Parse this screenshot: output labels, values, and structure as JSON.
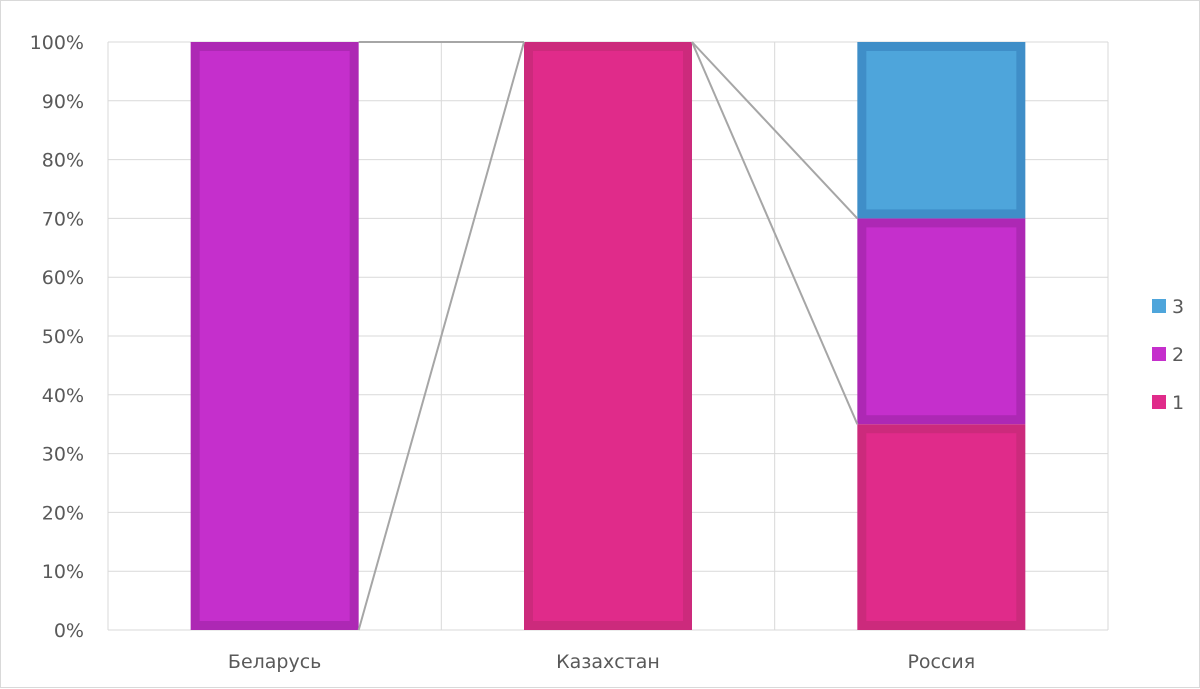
{
  "chart_data": {
    "type": "bar",
    "stacked": "percent",
    "categories": [
      "Беларусь",
      "Казахстан",
      "Россия"
    ],
    "series": [
      {
        "name": "1",
        "values": [
          0,
          100,
          35
        ],
        "color": "#e02b8a",
        "border": "#cc2a7c"
      },
      {
        "name": "2",
        "values": [
          100,
          0,
          35
        ],
        "color": "#c52fcc",
        "border": "#ad28b4"
      },
      {
        "name": "3",
        "values": [
          0,
          0,
          30
        ],
        "color": "#4ea5db",
        "border": "#3f8ec8"
      }
    ],
    "ylim": [
      0,
      100
    ],
    "yticks": [
      "0%",
      "10%",
      "20%",
      "30%",
      "40%",
      "50%",
      "60%",
      "70%",
      "80%",
      "90%",
      "100%"
    ],
    "legend": {
      "position": "right",
      "order": [
        "3",
        "2",
        "1"
      ]
    },
    "grid": true,
    "series_lines": true,
    "colors": {
      "grid": "#d9d9d9",
      "series_line": "#a6a6a6",
      "text": "#595959"
    }
  }
}
